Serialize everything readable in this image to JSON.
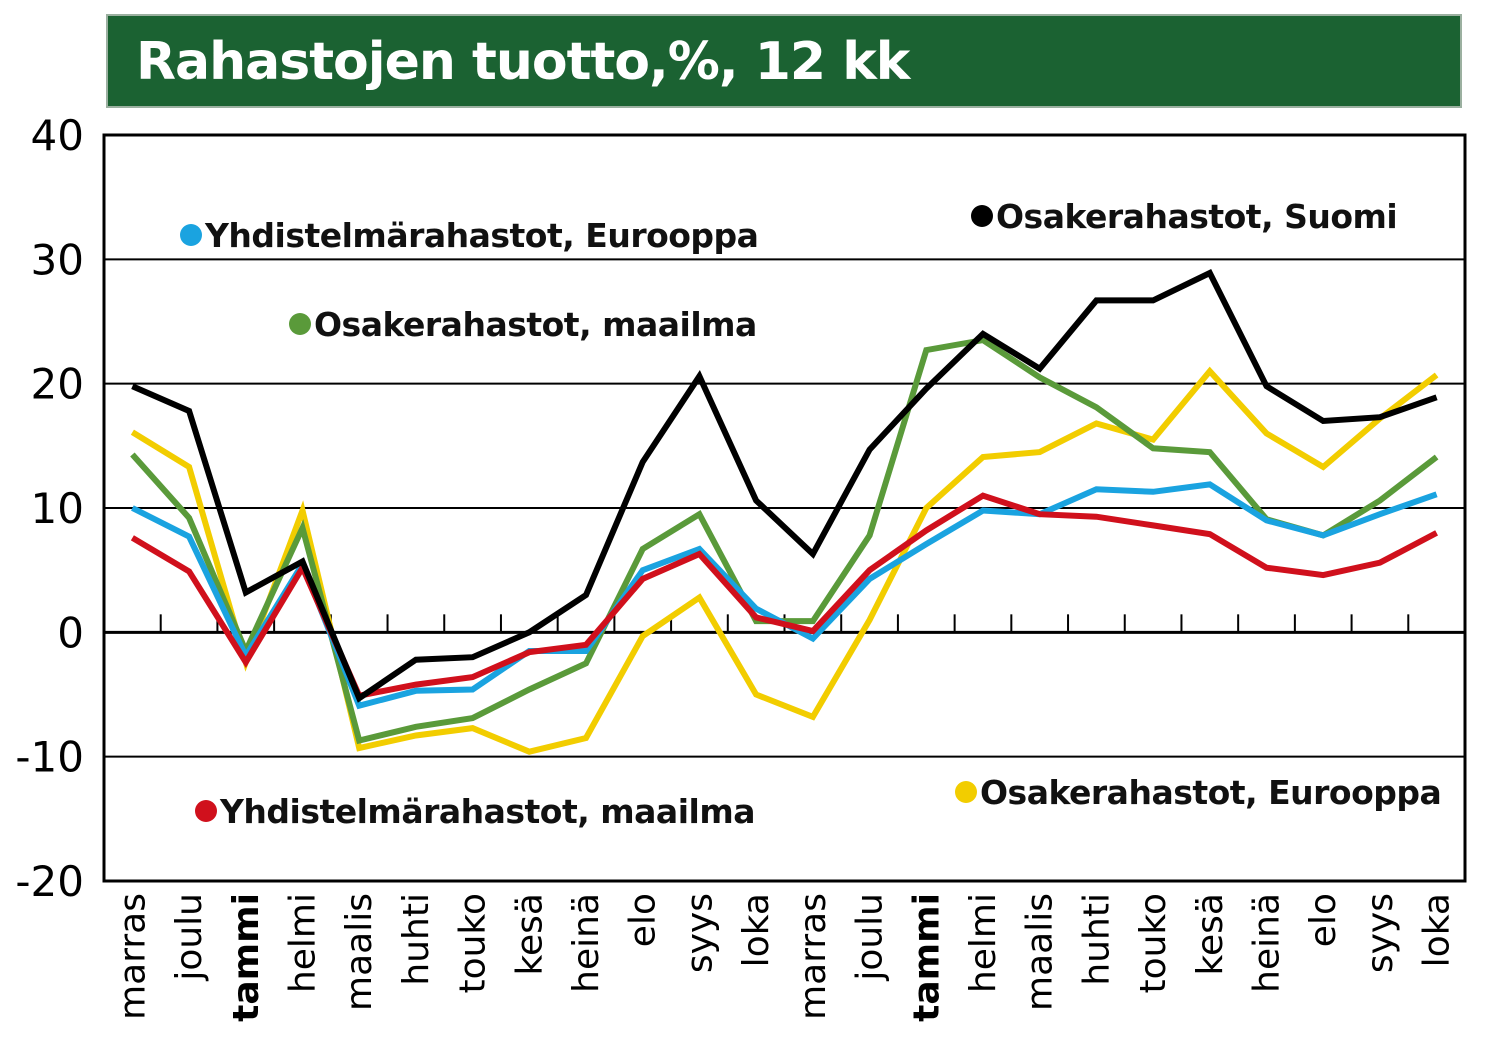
{
  "chart_data": {
    "type": "line",
    "title": "Rahastojen tuotto,%, 12 kk",
    "xlabel": "",
    "ylabel": "",
    "ylim": [
      -20,
      40
    ],
    "yticks": [
      "-20",
      "-10",
      "0",
      "10",
      "20",
      "30",
      "40"
    ],
    "categories": [
      "marras",
      "joulu",
      "tammi",
      "helmi",
      "maalis",
      "huhti",
      "touko",
      "kesä",
      "heinä",
      "elo",
      "syys",
      "loka",
      "marras",
      "joulu",
      "tammi",
      "helmi",
      "maalis",
      "huhti",
      "touko",
      "kesä",
      "heinä",
      "elo",
      "syys",
      "loka"
    ],
    "bold_categories": [
      2,
      14
    ],
    "grid": true,
    "series": [
      {
        "name": "Osakerahastot, Suomi",
        "color": "#000000",
        "values": [
          19.8,
          17.8,
          3.2,
          5.7,
          -5.3,
          -2.2,
          -2.0,
          0.0,
          3.0,
          13.7,
          20.6,
          10.6,
          6.3,
          14.7,
          19.6,
          24.0,
          21.2,
          26.7,
          26.7,
          28.9,
          19.8,
          17.0,
          17.3,
          18.9
        ]
      },
      {
        "name": "Osakerahastot, Eurooppa",
        "color": "#f2cd00",
        "values": [
          16.1,
          13.3,
          -2.4,
          9.8,
          -9.3,
          -8.3,
          -7.7,
          -9.6,
          -8.5,
          -0.3,
          2.8,
          -5.0,
          -6.8,
          1.0,
          10.0,
          14.1,
          14.5,
          16.8,
          15.5,
          21.0,
          16.0,
          13.3,
          17.2,
          20.7
        ]
      },
      {
        "name": "Osakerahastot, maailma",
        "color": "#5a9a3a",
        "values": [
          14.3,
          9.2,
          -1.5,
          8.4,
          -8.7,
          -7.6,
          -6.9,
          -4.6,
          -2.5,
          6.7,
          9.5,
          0.9,
          0.9,
          7.8,
          22.7,
          23.5,
          20.5,
          18.1,
          14.8,
          14.5,
          9.1,
          7.8,
          10.6,
          14.1
        ]
      },
      {
        "name": "Yhdistelmärahastot, Eurooppa",
        "color": "#1aa3e0",
        "values": [
          10.0,
          7.7,
          -1.9,
          5.5,
          -5.9,
          -4.7,
          -4.6,
          -1.5,
          -1.5,
          5.0,
          6.7,
          1.9,
          -0.5,
          4.3,
          7.1,
          9.8,
          9.5,
          11.5,
          11.3,
          11.9,
          9.0,
          7.8,
          9.5,
          11.1
        ]
      },
      {
        "name": "Yhdistelmärahastot, maailma",
        "color": "#d0101c",
        "values": [
          7.6,
          4.9,
          -2.4,
          5.2,
          -5.1,
          -4.2,
          -3.6,
          -1.6,
          -1.0,
          4.3,
          6.3,
          1.2,
          0.1,
          5.0,
          8.2,
          11.0,
          9.5,
          9.3,
          8.6,
          7.9,
          5.2,
          4.6,
          5.6,
          8.0
        ]
      }
    ]
  }
}
